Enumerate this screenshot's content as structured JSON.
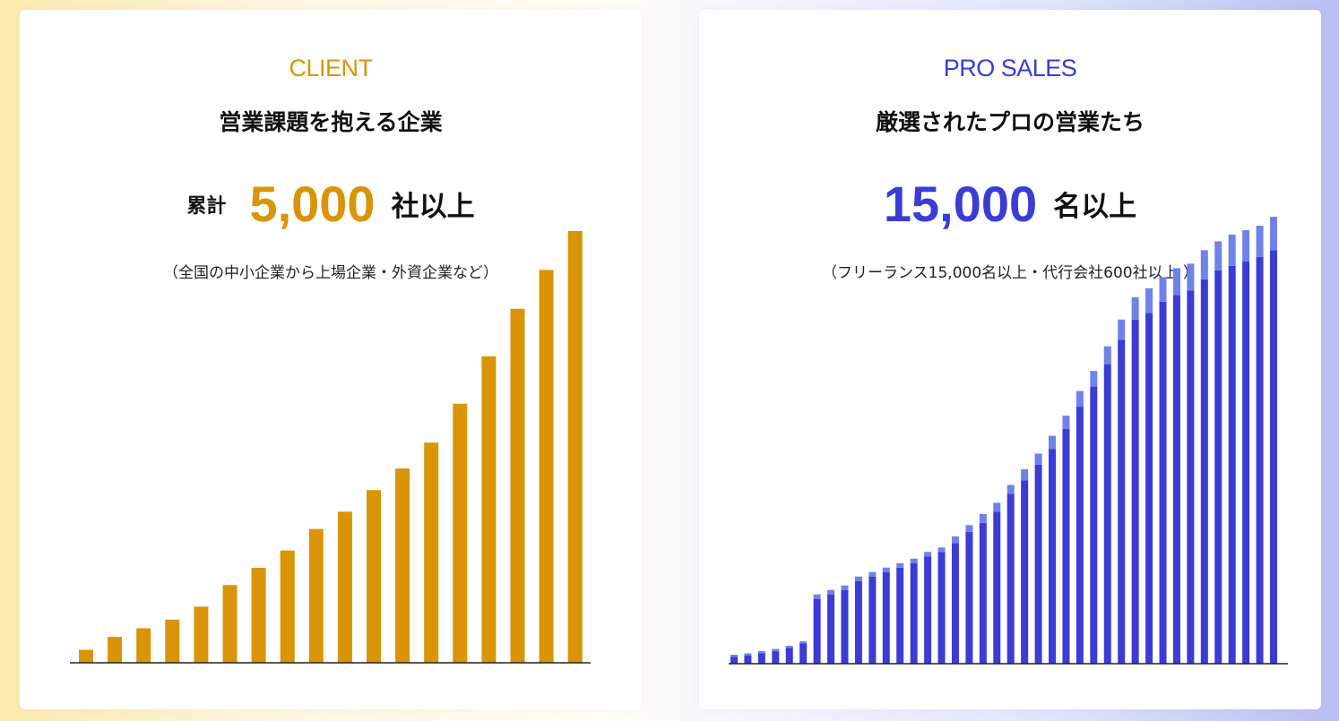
{
  "colors": {
    "client_accent": "#d99407",
    "pro_accent": "#3b3bd6",
    "pro_bar_light": "#6f82ea",
    "axis": "#222222"
  },
  "client": {
    "eyebrow": "CLIENT",
    "title": "営業課題を抱える企業",
    "headline_prefix": "累計",
    "headline_number": "5,000",
    "headline_suffix": "社以上",
    "note": "（全国の中小企業から上場企業・外資企業など）"
  },
  "pro": {
    "eyebrow": "PRO SALES",
    "title": "厳選されたプロの営業たち",
    "headline_number": "15,000",
    "headline_suffix": "名以上",
    "note": "（フリーランス15,000名以上・代行会社600社以上 ）"
  },
  "chart_data": [
    {
      "type": "bar",
      "values": [
        3,
        6,
        8,
        10,
        13,
        18,
        22,
        26,
        31,
        35,
        40,
        45,
        51,
        60,
        71,
        82,
        91,
        100
      ],
      "ylim": [
        0,
        100
      ],
      "color": "#d99407"
    },
    {
      "type": "bar",
      "stacked": true,
      "series": [
        {
          "color": "#3b3bd6",
          "values": [
            1.5,
            1.8,
            2.3,
            2.8,
            3.5,
            4.5,
            14.5,
            15.5,
            16.5,
            18.5,
            19.5,
            20.5,
            21.5,
            22.5,
            24,
            25,
            27,
            29.5,
            31.5,
            34,
            38,
            41,
            44.5,
            48,
            52.5,
            57.5,
            62,
            67,
            72.5,
            77,
            78.5,
            81,
            82.5,
            83.5,
            86,
            88,
            89,
            90,
            91,
            92.5
          ]
        },
        {
          "color": "#6f82ea",
          "values": [
            0.5,
            0.5,
            0.5,
            0.5,
            0.5,
            0.5,
            1,
            1,
            1,
            1,
            1,
            1,
            1,
            1,
            1,
            1,
            1.5,
            1.5,
            2,
            2,
            2,
            2.5,
            2.5,
            3,
            3,
            3.5,
            3.5,
            4,
            4.5,
            5,
            5.5,
            5.5,
            6,
            6,
            6.5,
            6.5,
            7,
            7,
            7,
            7.5
          ]
        }
      ],
      "ylim": [
        0,
        100
      ]
    }
  ]
}
